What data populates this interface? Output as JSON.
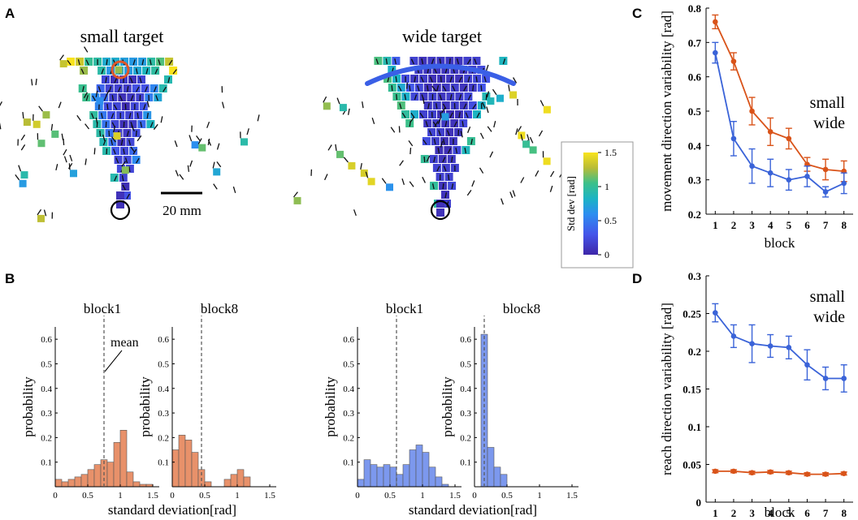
{
  "panels": {
    "a": "A",
    "b": "B",
    "c": "C",
    "d": "D"
  },
  "panel_a": {
    "small_title": "small target",
    "wide_title": "wide target",
    "scale_bar_label": "20 mm",
    "colorbar": {
      "label": "Std dev [rad]",
      "ticks": [
        "1.5",
        "1",
        "0.5",
        "0"
      ],
      "range": [
        0,
        1.5
      ]
    },
    "colors": {
      "small_target_ring": "#e0562a",
      "wide_target_arc": "#3a5fe6",
      "start_ring": "#000000"
    }
  },
  "chart_data": [
    {
      "id": "hist-small-block1",
      "type": "bar",
      "title": "block1",
      "xlabel": "",
      "ylabel": "probability",
      "xlim": [
        0,
        1.6
      ],
      "ylim": [
        0,
        0.65
      ],
      "xticks": [
        "0",
        "0.5",
        "1",
        "1.5"
      ],
      "yticks": [
        "0.1",
        "0.2",
        "0.3",
        "0.4",
        "0.5",
        "0.6"
      ],
      "bin_width": 0.1,
      "bin_starts": [
        0.0,
        0.1,
        0.2,
        0.3,
        0.4,
        0.5,
        0.6,
        0.7,
        0.8,
        0.9,
        1.0,
        1.1,
        1.2,
        1.3,
        1.4
      ],
      "values": [
        0.03,
        0.02,
        0.03,
        0.04,
        0.05,
        0.07,
        0.09,
        0.11,
        0.1,
        0.18,
        0.23,
        0.06,
        0.02,
        0.01,
        0.01
      ],
      "mean": 0.75,
      "annotation": "mean",
      "color": "#e8916a"
    },
    {
      "id": "hist-small-block8",
      "type": "bar",
      "title": "block8",
      "xlabel": "",
      "ylabel": "probability",
      "xlim": [
        0,
        1.6
      ],
      "ylim": [
        0,
        0.65
      ],
      "xticks": [
        "0",
        "0.5",
        "1",
        "1.5"
      ],
      "yticks": [
        "0.1",
        "0.2",
        "0.3",
        "0.4",
        "0.5",
        "0.6"
      ],
      "bin_width": 0.1,
      "bin_starts": [
        0.0,
        0.1,
        0.2,
        0.3,
        0.4,
        0.5,
        0.6,
        0.7,
        0.8,
        0.9,
        1.0,
        1.1,
        1.2,
        1.3,
        1.4
      ],
      "values": [
        0.15,
        0.21,
        0.19,
        0.14,
        0.07,
        0.02,
        0.0,
        0.0,
        0.03,
        0.05,
        0.07,
        0.04,
        0.0,
        0.0,
        0.0
      ],
      "mean": 0.45,
      "color": "#e8916a"
    },
    {
      "id": "hist-wide-block1",
      "type": "bar",
      "title": "block1",
      "xlabel": "",
      "ylabel": "probability",
      "xlim": [
        0,
        1.6
      ],
      "ylim": [
        0,
        0.65
      ],
      "xticks": [
        "0",
        "0.5",
        "1",
        "1.5"
      ],
      "yticks": [
        "0.1",
        "0.2",
        "0.3",
        "0.4",
        "0.5",
        "0.6"
      ],
      "bin_width": 0.1,
      "bin_starts": [
        0.0,
        0.1,
        0.2,
        0.3,
        0.4,
        0.5,
        0.6,
        0.7,
        0.8,
        0.9,
        1.0,
        1.1,
        1.2,
        1.3,
        1.4
      ],
      "values": [
        0.03,
        0.11,
        0.09,
        0.08,
        0.09,
        0.08,
        0.05,
        0.09,
        0.15,
        0.17,
        0.14,
        0.08,
        0.04,
        0.01,
        0.0
      ],
      "mean": 0.6,
      "color": "#7c98ee"
    },
    {
      "id": "hist-wide-block8",
      "type": "bar",
      "title": "block8",
      "xlabel": "",
      "ylabel": "probability",
      "xlim": [
        0,
        1.6
      ],
      "ylim": [
        0,
        0.65
      ],
      "xticks": [
        "0",
        "0.5",
        "1",
        "1.5"
      ],
      "yticks": [
        "0.1",
        "0.2",
        "0.3",
        "0.4",
        "0.5",
        "0.6"
      ],
      "bin_width": 0.1,
      "bin_starts": [
        0.0,
        0.1,
        0.2,
        0.3,
        0.4,
        0.5,
        0.6,
        0.7,
        0.8,
        0.9,
        1.0,
        1.1,
        1.2,
        1.3,
        1.4
      ],
      "values": [
        0.0,
        0.62,
        0.16,
        0.08,
        0.05,
        0.0,
        0.0,
        0.0,
        0.0,
        0.0,
        0.0,
        0.0,
        0.0,
        0.0,
        0.0
      ],
      "mean": 0.15,
      "color": "#7c98ee"
    },
    {
      "id": "line-movement",
      "type": "line",
      "xlabel": "block",
      "ylabel": "movement direction variability [rad]",
      "x": [
        1,
        2,
        3,
        4,
        5,
        6,
        7,
        8
      ],
      "xlim": [
        0.5,
        8.5
      ],
      "ylim": [
        0.2,
        0.8
      ],
      "yticks": [
        "0.2",
        "0.3",
        "0.4",
        "0.5",
        "0.6",
        "0.7",
        "0.8"
      ],
      "series": [
        {
          "name": "small",
          "color": "#d95319",
          "values": [
            0.76,
            0.645,
            0.5,
            0.44,
            0.42,
            0.345,
            0.33,
            0.325
          ],
          "err": [
            0.02,
            0.025,
            0.04,
            0.04,
            0.03,
            0.02,
            0.03,
            0.03
          ]
        },
        {
          "name": "wide",
          "color": "#3a63d8",
          "values": [
            0.67,
            0.42,
            0.34,
            0.32,
            0.3,
            0.31,
            0.265,
            0.29
          ],
          "err": [
            0.03,
            0.05,
            0.05,
            0.04,
            0.03,
            0.03,
            0.015,
            0.03
          ]
        }
      ],
      "legend": [
        "small",
        "wide"
      ]
    },
    {
      "id": "line-reach",
      "type": "line",
      "xlabel": "block",
      "ylabel": "reach direction variability [rad]",
      "x": [
        1,
        2,
        3,
        4,
        5,
        6,
        7,
        8
      ],
      "xlim": [
        0.5,
        8.5
      ],
      "ylim": [
        0,
        0.3
      ],
      "yticks": [
        "0",
        "0.05",
        "0.1",
        "0.15",
        "0.2",
        "0.25",
        "0.3"
      ],
      "series": [
        {
          "name": "small",
          "color": "#d95319",
          "values": [
            0.041,
            0.041,
            0.039,
            0.04,
            0.039,
            0.037,
            0.037,
            0.038
          ],
          "err": [
            0.002,
            0.002,
            0.002,
            0.002,
            0.002,
            0.002,
            0.002,
            0.002
          ]
        },
        {
          "name": "wide",
          "color": "#3a63d8",
          "values": [
            0.251,
            0.22,
            0.21,
            0.207,
            0.205,
            0.182,
            0.164,
            0.164
          ],
          "err": [
            0.012,
            0.015,
            0.025,
            0.015,
            0.015,
            0.02,
            0.015,
            0.018
          ]
        }
      ],
      "legend": [
        "small",
        "wide"
      ]
    }
  ],
  "hist_common": {
    "xlabel": "standard deviation[rad]"
  }
}
